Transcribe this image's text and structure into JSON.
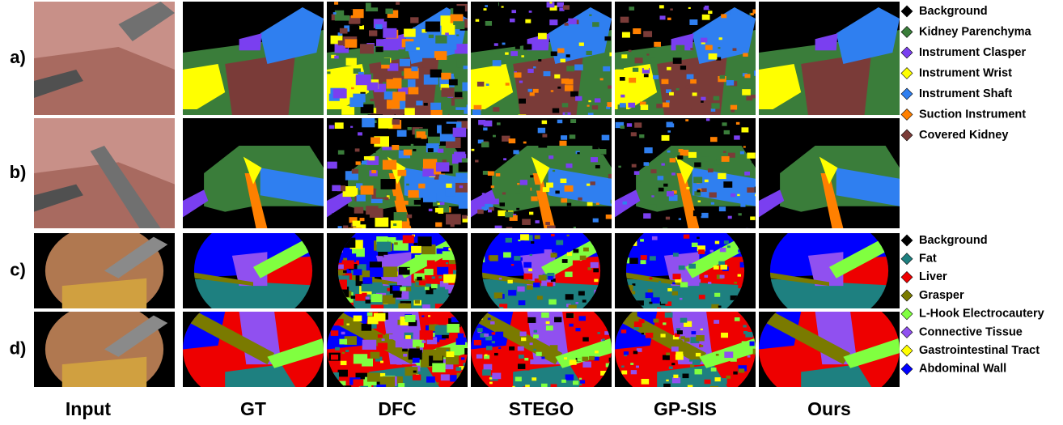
{
  "figure": {
    "row_labels": [
      "a)",
      "b)",
      "c)",
      "d)"
    ],
    "column_labels": [
      "Input",
      "GT",
      "DFC",
      "STEGO",
      "GP-SIS",
      "Ours"
    ],
    "legend_top": [
      {
        "label": "Background",
        "color": "#000000"
      },
      {
        "label": "Kidney Parenchyma",
        "color": "#3a7d3a"
      },
      {
        "label": "Instrument Clasper",
        "color": "#7a3ff0"
      },
      {
        "label": "Instrument Wrist",
        "color": "#ffff00"
      },
      {
        "label": "Instrument Shaft",
        "color": "#2f7ff0"
      },
      {
        "label": "Suction Instrument",
        "color": "#ff8000"
      },
      {
        "label": "Covered Kidney",
        "color": "#7a3b38"
      }
    ],
    "legend_bottom": [
      {
        "label": "Background",
        "color": "#000000"
      },
      {
        "label": "Fat",
        "color": "#1e8080"
      },
      {
        "label": "Liver",
        "color": "#ee0000"
      },
      {
        "label": "Grasper",
        "color": "#7a7a00"
      },
      {
        "label": "L-Hook Electrocautery",
        "color": "#80ff40"
      },
      {
        "label": "Connective Tissue",
        "color": "#9050f0"
      },
      {
        "label": "Gastrointestinal Tract",
        "color": "#ffff00"
      },
      {
        "label": "Abdominal Wall",
        "color": "#0000ff"
      }
    ]
  }
}
